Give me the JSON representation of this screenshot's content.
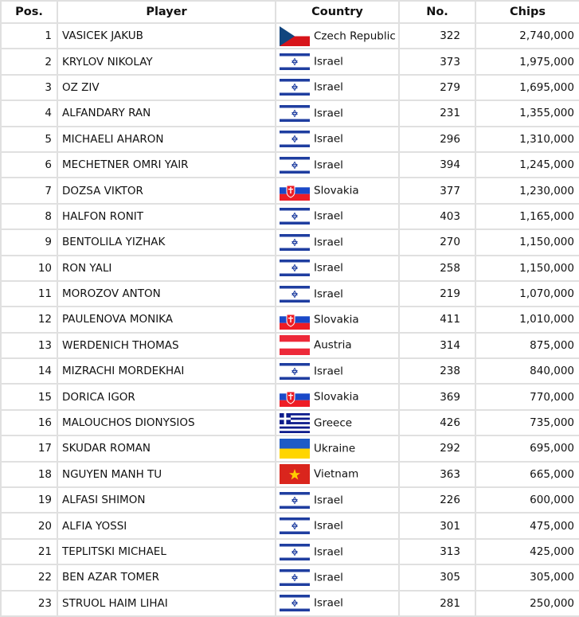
{
  "headers": {
    "pos": "Pos.",
    "player": "Player",
    "country": "Country",
    "no": "No.",
    "chips": "Chips"
  },
  "rows": [
    {
      "pos": "1",
      "player": "VASICEK JAKUB",
      "flag": "cz",
      "country": "Czech Republic",
      "no": "322",
      "chips": "2,740,000"
    },
    {
      "pos": "2",
      "player": "KRYLOV NIKOLAY",
      "flag": "il",
      "country": "Israel",
      "no": "373",
      "chips": "1,975,000"
    },
    {
      "pos": "3",
      "player": "OZ ZIV",
      "flag": "il",
      "country": "Israel",
      "no": "279",
      "chips": "1,695,000"
    },
    {
      "pos": "4",
      "player": "ALFANDARY RAN",
      "flag": "il",
      "country": "Israel",
      "no": "231",
      "chips": "1,355,000"
    },
    {
      "pos": "5",
      "player": "MICHAELI AHARON",
      "flag": "il",
      "country": "Israel",
      "no": "296",
      "chips": "1,310,000"
    },
    {
      "pos": "6",
      "player": "MECHETNER OMRI YAIR",
      "flag": "il",
      "country": "Israel",
      "no": "394",
      "chips": "1,245,000"
    },
    {
      "pos": "7",
      "player": "DOZSA VIKTOR",
      "flag": "sk",
      "country": "Slovakia",
      "no": "377",
      "chips": "1,230,000"
    },
    {
      "pos": "8",
      "player": "HALFON RONIT",
      "flag": "il",
      "country": "Israel",
      "no": "403",
      "chips": "1,165,000"
    },
    {
      "pos": "9",
      "player": "BENTOLILA YIZHAK",
      "flag": "il",
      "country": "Israel",
      "no": "270",
      "chips": "1,150,000"
    },
    {
      "pos": "10",
      "player": "RON YALI",
      "flag": "il",
      "country": "Israel",
      "no": "258",
      "chips": "1,150,000"
    },
    {
      "pos": "11",
      "player": "MOROZOV ANTON",
      "flag": "il",
      "country": "Israel",
      "no": "219",
      "chips": "1,070,000"
    },
    {
      "pos": "12",
      "player": "PAULENOVA MONIKA",
      "flag": "sk",
      "country": "Slovakia",
      "no": "411",
      "chips": "1,010,000"
    },
    {
      "pos": "13",
      "player": "WERDENICH THOMAS",
      "flag": "at",
      "country": "Austria",
      "no": "314",
      "chips": "875,000"
    },
    {
      "pos": "14",
      "player": "MIZRACHI MORDEKHAI",
      "flag": "il",
      "country": "Israel",
      "no": "238",
      "chips": "840,000"
    },
    {
      "pos": "15",
      "player": "DORICA IGOR",
      "flag": "sk",
      "country": "Slovakia",
      "no": "369",
      "chips": "770,000"
    },
    {
      "pos": "16",
      "player": "MALOUCHOS DIONYSIOS",
      "flag": "gr",
      "country": "Greece",
      "no": "426",
      "chips": "735,000"
    },
    {
      "pos": "17",
      "player": "SKUDAR ROMAN",
      "flag": "ua",
      "country": "Ukraine",
      "no": "292",
      "chips": "695,000"
    },
    {
      "pos": "18",
      "player": "NGUYEN MANH TU",
      "flag": "vn",
      "country": "Vietnam",
      "no": "363",
      "chips": "665,000"
    },
    {
      "pos": "19",
      "player": "ALFASI SHIMON",
      "flag": "il",
      "country": "Israel",
      "no": "226",
      "chips": "600,000"
    },
    {
      "pos": "20",
      "player": "ALFIA YOSSI",
      "flag": "il",
      "country": "Israel",
      "no": "301",
      "chips": "475,000"
    },
    {
      "pos": "21",
      "player": "TEPLITSKI MICHAEL",
      "flag": "il",
      "country": "Israel",
      "no": "313",
      "chips": "425,000"
    },
    {
      "pos": "22",
      "player": "BEN AZAR TOMER",
      "flag": "il",
      "country": "Israel",
      "no": "305",
      "chips": "305,000"
    },
    {
      "pos": "23",
      "player": "STRUOL HAIM LIHAI",
      "flag": "il",
      "country": "Israel",
      "no": "281",
      "chips": "250,000"
    }
  ]
}
